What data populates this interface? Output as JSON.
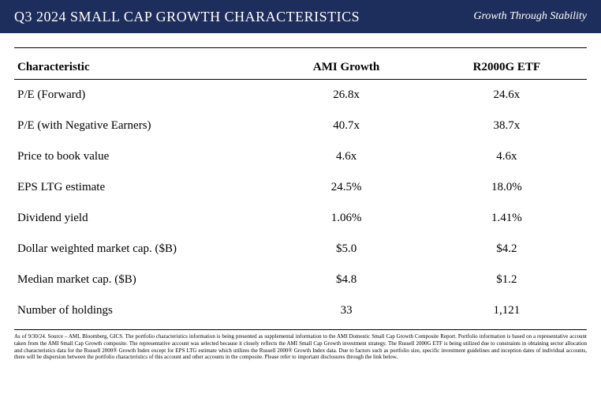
{
  "header": {
    "title": "Q3 2024 SMALL CAP GROWTH CHARACTERISTICS",
    "tagline": "Growth Through Stability"
  },
  "table": {
    "columns": [
      "Characteristic",
      "AMI Growth",
      "R2000G ETF"
    ],
    "rows": [
      {
        "label": "P/E (Forward)",
        "ami": "26.8x",
        "r2000g": "24.6x"
      },
      {
        "label": "P/E (with Negative Earners)",
        "ami": "40.7x",
        "r2000g": "38.7x"
      },
      {
        "label": "Price to book value",
        "ami": "4.6x",
        "r2000g": "4.6x"
      },
      {
        "label": "EPS LTG estimate",
        "ami": "24.5%",
        "r2000g": "18.0%"
      },
      {
        "label": "Dividend yield",
        "ami": "1.06%",
        "r2000g": "1.41%"
      },
      {
        "label": "Dollar weighted market cap. ($B)",
        "ami": "$5.0",
        "r2000g": "$4.2"
      },
      {
        "label": "Median market cap. ($B)",
        "ami": "$4.8",
        "r2000g": "$1.2"
      },
      {
        "label": "Number of holdings",
        "ami": "33",
        "r2000g": "1,121"
      }
    ]
  },
  "footnote": "As of 9/30/24. Source – AMI, Bloomberg, GICS. The portfolio characteristics information is being presented as supplemental information to the AMI Domestic Small Cap Growth Composite Report. Portfolio information is based on a representative account taken from the AMI Small Cap Growth composite. The representative account was selected because it closely reflects the AMI Small Cap Growth investment strategy. The Russell 2000G ETF is being utilized due to constraints in obtaining sector allocation and characteristics data for the Russell 2000® Growth Index except for EPS LTG estimate which utilizes the Russell 2000® Growth Index data. Due to factors such as portfolio size, specific investment guidelines and inception dates of individual accounts, there will be dispersion between the portfolio characteristics of this account and other accounts in the composite. Please refer to important disclosures through the link below."
}
